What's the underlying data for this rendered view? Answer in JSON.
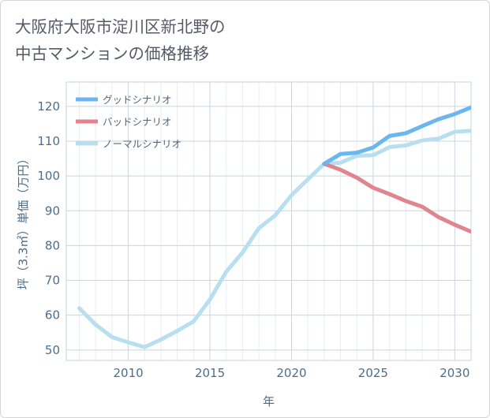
{
  "title_lines": [
    "大阪府大阪市淀川区新北野の",
    "中古マンションの価格推移"
  ],
  "chart_data": {
    "type": "line",
    "xlabel": "年",
    "ylabel": "坪（3.3㎡）単価（万円）",
    "xlim": [
      2006.2,
      2031
    ],
    "ylim": [
      47,
      127
    ],
    "x_ticks": [
      2010,
      2015,
      2020,
      2025,
      2030
    ],
    "y_ticks": [
      50,
      60,
      70,
      80,
      90,
      100,
      110,
      120
    ],
    "grid": true,
    "legend_position": "top-left",
    "series": [
      {
        "name": "グッドシナリオ",
        "color": "#6cb6ef",
        "points": [
          [
            2022,
            103.5
          ],
          [
            2023,
            106.3
          ],
          [
            2024,
            106.7
          ],
          [
            2025,
            108.2
          ],
          [
            2026,
            111.5
          ],
          [
            2027,
            112.3
          ],
          [
            2028,
            114.3
          ],
          [
            2029,
            116.3
          ],
          [
            2030,
            117.8
          ],
          [
            2031,
            119.7
          ]
        ]
      },
      {
        "name": "バッドシナリオ",
        "color": "#e0848f",
        "points": [
          [
            2022,
            103.5
          ],
          [
            2023,
            101.8
          ],
          [
            2024,
            99.5
          ],
          [
            2025,
            96.6
          ],
          [
            2026,
            94.8
          ],
          [
            2027,
            92.8
          ],
          [
            2028,
            91.2
          ],
          [
            2029,
            88.2
          ],
          [
            2030,
            86.0
          ],
          [
            2031,
            84.0
          ]
        ]
      },
      {
        "name": "ノーマルシナリオ",
        "color": "#b7dff0",
        "points": [
          [
            2007,
            62.0
          ],
          [
            2008,
            57.3
          ],
          [
            2009,
            53.7
          ],
          [
            2010,
            52.2
          ],
          [
            2011,
            50.8
          ],
          [
            2012,
            53.0
          ],
          [
            2013,
            55.5
          ],
          [
            2014,
            58.2
          ],
          [
            2015,
            64.5
          ],
          [
            2016,
            72.5
          ],
          [
            2017,
            78.0
          ],
          [
            2018,
            85.0
          ],
          [
            2019,
            88.7
          ],
          [
            2020,
            94.5
          ],
          [
            2021,
            99.0
          ],
          [
            2022,
            103.5
          ],
          [
            2023,
            103.8
          ],
          [
            2024,
            105.8
          ],
          [
            2025,
            106.0
          ],
          [
            2026,
            108.3
          ],
          [
            2027,
            108.8
          ],
          [
            2028,
            110.2
          ],
          [
            2029,
            110.7
          ],
          [
            2030,
            112.7
          ],
          [
            2031,
            113.0
          ]
        ]
      }
    ]
  }
}
